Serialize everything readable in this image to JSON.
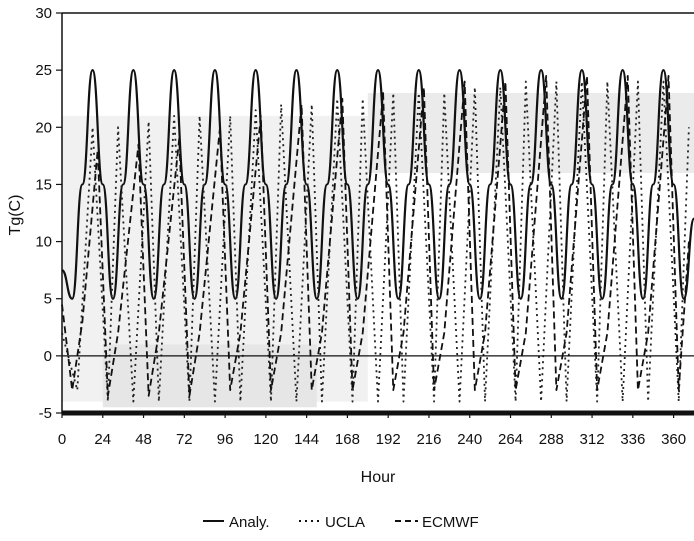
{
  "chart_data": {
    "type": "line",
    "xlabel": "Hour",
    "ylabel": "Tg(C)",
    "xlim": [
      0,
      372
    ],
    "ylim": [
      -5,
      30
    ],
    "xticks": [
      0,
      24,
      48,
      72,
      96,
      120,
      144,
      168,
      192,
      216,
      240,
      264,
      288,
      312,
      336,
      360
    ],
    "yticks": [
      -5,
      0,
      5,
      10,
      15,
      20,
      25,
      30
    ],
    "grid": false,
    "legend_position": "bottom",
    "series": [
      {
        "name": "Analy.",
        "style": "solid",
        "color": "#111111",
        "x": [
          0,
          6,
          12,
          18,
          24,
          30,
          36,
          42,
          48,
          54,
          60,
          66,
          72,
          78,
          84,
          90,
          96,
          102,
          108,
          114,
          120,
          126,
          132,
          138,
          144,
          150,
          156,
          162,
          168,
          174,
          180,
          186,
          192,
          198,
          204,
          210,
          216,
          222,
          228,
          234,
          240,
          246,
          252,
          258,
          264,
          270,
          276,
          282,
          288,
          294,
          300,
          306,
          312,
          318,
          324,
          330,
          336,
          342,
          348,
          354,
          360,
          366,
          372
        ],
        "values": [
          7.5,
          5,
          15,
          25,
          15,
          5,
          15,
          25,
          15,
          5,
          15,
          25,
          15,
          5,
          15,
          25,
          15,
          5,
          15,
          25,
          15,
          5,
          15,
          25,
          15,
          5,
          15,
          25,
          15,
          5,
          15,
          25,
          15,
          5,
          15,
          25,
          15,
          5,
          15,
          25,
          15,
          5,
          15,
          25,
          15,
          5,
          15,
          25,
          15,
          5,
          15,
          25,
          15,
          5,
          15,
          25,
          15,
          5,
          15,
          25,
          15,
          5,
          12
        ]
      },
      {
        "name": "UCLA",
        "style": "dotted",
        "color": "#222222",
        "x": [
          0,
          9,
          18,
          27,
          33,
          42,
          51,
          57,
          66,
          75,
          81,
          90,
          99,
          105,
          114,
          123,
          129,
          138,
          147,
          153,
          162,
          171,
          177,
          186,
          195,
          201,
          210,
          219,
          225,
          234,
          243,
          249,
          258,
          267,
          273,
          282,
          291,
          297,
          306,
          315,
          321,
          330,
          339,
          345,
          354,
          363,
          369
        ],
        "values": [
          2,
          -3,
          20,
          -4,
          20,
          -4,
          20.5,
          -4,
          21,
          -4,
          21,
          -4,
          21,
          -4,
          21.5,
          -4,
          22,
          -4,
          22,
          -4,
          22.5,
          -4,
          22.5,
          -4,
          23,
          -4,
          23,
          -4,
          23,
          -4,
          23.5,
          -4,
          23.5,
          -4,
          24,
          -4,
          24,
          -4,
          24,
          -4,
          24,
          -4,
          24,
          -4,
          24,
          -4,
          20
        ]
      },
      {
        "name": "ECMWF",
        "style": "dashed",
        "color": "#111111",
        "x": [
          0,
          6,
          12,
          21,
          27,
          33,
          45,
          51,
          57,
          69,
          75,
          81,
          93,
          99,
          105,
          117,
          123,
          129,
          141,
          147,
          153,
          165,
          171,
          177,
          189,
          195,
          201,
          213,
          219,
          225,
          237,
          243,
          249,
          261,
          267,
          273,
          285,
          291,
          297,
          309,
          315,
          321,
          333,
          339,
          345,
          357,
          363,
          369
        ],
        "values": [
          4.5,
          -3,
          3,
          18,
          -3.5,
          2,
          18.5,
          -3.5,
          2,
          19,
          -3.5,
          2,
          20,
          -3,
          2,
          21,
          -3,
          2,
          22,
          -3,
          2,
          22.5,
          -3,
          2,
          23,
          -3,
          2,
          23.5,
          -3,
          2,
          24,
          -3,
          2,
          24,
          -3,
          2,
          24.5,
          -3,
          2,
          24.5,
          -3,
          2,
          24.5,
          -3,
          2,
          24.5,
          -3,
          10
        ]
      }
    ]
  }
}
